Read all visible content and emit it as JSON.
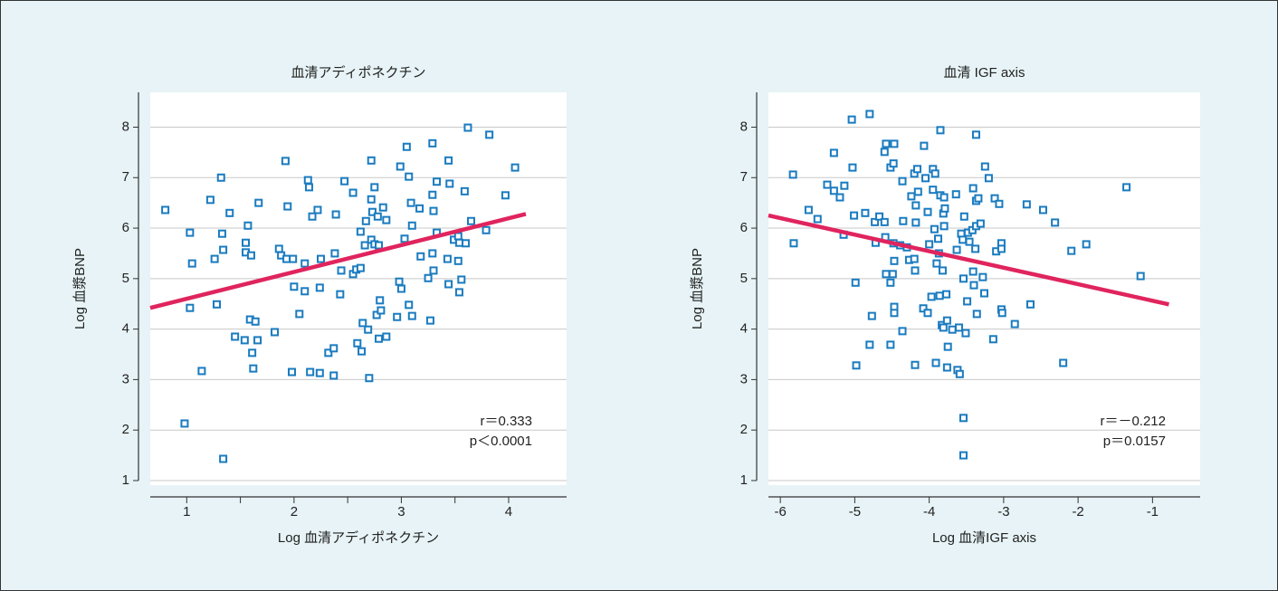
{
  "chart_data": [
    {
      "type": "scatter",
      "title": "血清アディポネクチン",
      "x_label": "Log 血清アディポネクチン",
      "y_label": "Log 血漿BNP",
      "annotations": [
        "r＝0.333",
        "p＜0.0001"
      ],
      "color": "#1a7bbf",
      "fit_color": "#e0245e",
      "xlim": [
        0.66,
        4.54
      ],
      "ylim": [
        0.91,
        8.69
      ],
      "xticks": [
        1,
        2,
        3,
        4
      ],
      "x_minor_ticks": [
        1.5,
        2.5,
        3.5
      ],
      "yticks": [
        1,
        2,
        3,
        4,
        5,
        6,
        7,
        8
      ],
      "grid": true,
      "fit": {
        "x": [
          0.66,
          4.16
        ],
        "y": [
          4.42,
          6.28
        ]
      },
      "x": [
        0.8,
        1.03,
        1.03,
        1.05,
        0.98,
        1.14,
        1.22,
        1.26,
        1.28,
        1.32,
        1.33,
        1.34,
        1.34,
        1.4,
        1.45,
        1.54,
        1.55,
        1.55,
        1.57,
        1.59,
        1.6,
        1.61,
        1.62,
        1.64,
        1.66,
        1.67,
        1.82,
        1.86,
        1.88,
        1.92,
        1.94,
        1.93,
        1.98,
        2.0,
        1.99,
        2.05,
        2.1,
        2.1,
        2.13,
        2.14,
        2.15,
        2.17,
        2.22,
        2.24,
        2.24,
        2.25,
        2.32,
        2.37,
        2.39,
        2.38,
        2.37,
        2.43,
        2.44,
        2.47,
        2.55,
        2.55,
        2.58,
        2.59,
        2.62,
        2.62,
        2.63,
        2.64,
        2.66,
        2.67,
        2.69,
        2.7,
        2.72,
        2.72,
        2.72,
        2.73,
        2.75,
        2.75,
        2.77,
        2.78,
        2.79,
        2.79,
        2.8,
        2.81,
        2.83,
        2.86,
        2.86,
        2.96,
        2.98,
        2.99,
        3.0,
        3.03,
        3.05,
        3.07,
        3.07,
        3.09,
        3.1,
        3.1,
        3.17,
        3.18,
        3.27,
        3.25,
        3.29,
        3.29,
        3.29,
        3.3,
        3.3,
        3.33,
        3.33,
        3.43,
        3.44,
        3.45,
        3.44,
        3.49,
        3.53,
        3.53,
        3.54,
        3.54,
        3.56,
        3.59,
        3.6,
        3.62,
        3.65,
        3.79,
        3.82,
        3.97,
        4.06
      ],
      "y": [
        6.36,
        5.91,
        4.42,
        5.3,
        2.13,
        3.17,
        6.56,
        5.39,
        4.49,
        7.0,
        5.89,
        1.43,
        5.57,
        6.3,
        3.85,
        3.78,
        5.71,
        5.52,
        6.05,
        4.19,
        5.46,
        3.53,
        3.22,
        4.15,
        3.78,
        6.5,
        3.94,
        5.59,
        5.46,
        7.33,
        6.43,
        5.39,
        3.15,
        4.84,
        5.39,
        4.3,
        5.3,
        4.75,
        6.95,
        6.81,
        3.15,
        6.23,
        6.36,
        4.82,
        3.13,
        5.39,
        3.53,
        3.62,
        6.27,
        5.5,
        3.08,
        4.69,
        5.16,
        6.93,
        6.7,
        5.09,
        5.18,
        3.72,
        5.93,
        5.21,
        3.56,
        4.12,
        5.66,
        6.14,
        3.99,
        3.03,
        7.34,
        6.57,
        5.77,
        6.32,
        6.81,
        5.68,
        4.28,
        6.23,
        3.81,
        5.66,
        4.57,
        4.37,
        6.41,
        3.85,
        6.16,
        4.24,
        4.94,
        7.22,
        4.8,
        5.79,
        7.61,
        7.02,
        4.48,
        6.5,
        4.26,
        6.05,
        6.39,
        5.44,
        4.17,
        5.01,
        7.68,
        6.66,
        5.5,
        6.34,
        5.16,
        6.92,
        5.91,
        5.39,
        7.34,
        6.88,
        4.89,
        5.77,
        5.84,
        5.35,
        4.73,
        5.71,
        4.98,
        6.73,
        5.7,
        7.99,
        6.14,
        5.96,
        7.85,
        6.65,
        7.2
      ]
    },
    {
      "type": "scatter",
      "title": "血清 IGF axis",
      "x_label": "Log 血清IGF axis",
      "y_label": "Log 血漿BNP",
      "annotations": [
        "r＝－0.212",
        "p＝0.0157"
      ],
      "color": "#1a7bbf",
      "fit_color": "#e0245e",
      "xlim": [
        -6.16,
        -0.36
      ],
      "ylim": [
        0.91,
        8.69
      ],
      "xticks": [
        -6,
        -5,
        -4,
        -3,
        -2,
        -1
      ],
      "yticks": [
        1,
        2,
        3,
        4,
        5,
        6,
        7,
        8
      ],
      "grid": true,
      "fit": {
        "x": [
          -6.16,
          -0.78
        ],
        "y": [
          6.25,
          4.49
        ]
      },
      "x": [
        -5.83,
        -5.82,
        -5.62,
        -5.5,
        -5.37,
        -5.28,
        -5.28,
        -5.2,
        -5.14,
        -5.15,
        -5.04,
        -5.03,
        -5.01,
        -4.99,
        -4.98,
        -4.86,
        -4.8,
        -4.8,
        -4.77,
        -4.73,
        -4.72,
        -4.67,
        -4.6,
        -4.58,
        -4.6,
        -4.59,
        -4.58,
        -4.52,
        -4.52,
        -4.52,
        -4.49,
        -4.48,
        -4.47,
        -4.47,
        -4.47,
        -4.47,
        -4.48,
        -4.39,
        -4.36,
        -4.36,
        -4.35,
        -4.3,
        -4.27,
        -4.24,
        -4.2,
        -4.2,
        -4.19,
        -4.19,
        -4.18,
        -4.18,
        -4.16,
        -4.15,
        -4.08,
        -4.07,
        -4.05,
        -4.02,
        -4.02,
        -4.0,
        -3.97,
        -3.95,
        -3.95,
        -3.93,
        -3.92,
        -3.91,
        -3.9,
        -3.88,
        -3.87,
        -3.86,
        -3.85,
        -3.85,
        -3.83,
        -3.82,
        -3.81,
        -3.81,
        -3.8,
        -3.8,
        -3.79,
        -3.77,
        -3.76,
        -3.75,
        -3.76,
        -3.69,
        -3.64,
        -3.63,
        -3.62,
        -3.6,
        -3.59,
        -3.57,
        -3.55,
        -3.54,
        -3.54,
        -3.54,
        -3.53,
        -3.51,
        -3.49,
        -3.48,
        -3.46,
        -3.42,
        -3.41,
        -3.41,
        -3.4,
        -3.38,
        -3.37,
        -3.37,
        -3.37,
        -3.36,
        -3.34,
        -3.31,
        -3.28,
        -3.26,
        -3.25,
        -3.2,
        -3.14,
        -3.12,
        -3.1,
        -3.06,
        -3.03,
        -3.03,
        -3.03,
        -3.02,
        -2.85,
        -2.69,
        -2.64,
        -2.47,
        -2.31,
        -2.2,
        -2.09,
        -1.89,
        -1.35,
        -1.16
      ],
      "y": [
        7.06,
        5.7,
        6.36,
        6.18,
        6.86,
        7.49,
        6.74,
        6.61,
        6.84,
        5.87,
        8.15,
        7.2,
        6.25,
        4.92,
        3.28,
        6.3,
        8.26,
        3.69,
        4.26,
        6.12,
        5.71,
        6.23,
        7.51,
        7.67,
        6.12,
        5.82,
        5.09,
        7.2,
        4.92,
        3.69,
        5.09,
        7.28,
        7.67,
        4.44,
        4.32,
        5.35,
        5.7,
        5.66,
        6.93,
        3.96,
        6.14,
        5.62,
        5.37,
        6.63,
        7.08,
        5.39,
        5.16,
        3.29,
        6.45,
        6.11,
        7.17,
        6.72,
        4.41,
        7.63,
        6.99,
        6.32,
        4.32,
        5.68,
        4.64,
        7.17,
        6.76,
        5.98,
        7.08,
        3.33,
        5.3,
        5.79,
        5.5,
        4.66,
        7.94,
        6.65,
        4.08,
        5.16,
        4.03,
        6.29,
        6.04,
        6.61,
        6.39,
        4.69,
        4.17,
        3.65,
        3.24,
        3.99,
        6.67,
        5.57,
        3.19,
        4.03,
        3.11,
        5.89,
        5.77,
        5.0,
        2.24,
        1.5,
        6.23,
        3.92,
        4.55,
        5.91,
        5.73,
        5.96,
        6.79,
        5.14,
        4.87,
        5.59,
        7.85,
        6.54,
        6.04,
        4.3,
        6.59,
        6.09,
        5.03,
        4.71,
        7.22,
        6.99,
        3.8,
        6.59,
        5.54,
        6.48,
        5.7,
        5.59,
        4.39,
        4.32,
        4.1,
        6.47,
        4.49,
        6.36,
        6.11,
        3.33,
        5.55,
        5.68,
        6.81,
        5.05
      ]
    }
  ]
}
